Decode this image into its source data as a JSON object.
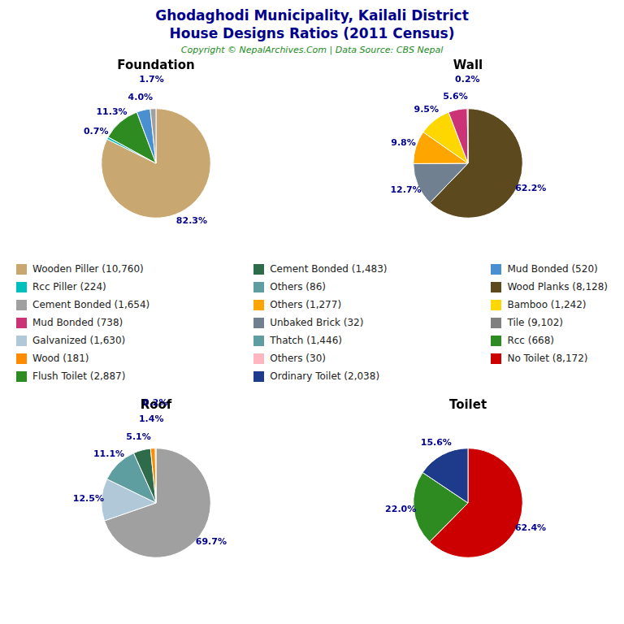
{
  "title": "Ghodaghodi Municipality, Kailali District",
  "subtitle": "House Designs Ratios (2011 Census)",
  "annotations": [
    "Copyright © NepalArchives.Com | Data Source: CBS Nepal"
  ],
  "legend_entries": [
    [
      {
        "name": "Wooden Piller (10,760)",
        "color": "#C8A870"
      },
      {
        "name": "Rcc Piller (224)",
        "color": "#00BFBF"
      },
      {
        "name": "Cement Bonded (1,654)",
        "color": "#A0A0A0"
      },
      {
        "name": "Mud Bonded (738)",
        "color": "#CC3377"
      },
      {
        "name": "Galvanized (1,630)",
        "color": "#B0C8D8"
      },
      {
        "name": "Wood (181)",
        "color": "#FF8C00"
      },
      {
        "name": "Flush Toilet (2,887)",
        "color": "#2E8B22"
      }
    ],
    [
      {
        "name": "Cement Bonded (1,483)",
        "color": "#2E6B4A"
      },
      {
        "name": "Others (86)",
        "color": "#5F9EA0"
      },
      {
        "name": "Others (1,277)",
        "color": "#FFA500"
      },
      {
        "name": "Unbaked Brick (32)",
        "color": "#708090"
      },
      {
        "name": "Thatch (1,446)",
        "color": "#5F9EA0"
      },
      {
        "name": "Others (30)",
        "color": "#FFB6C1"
      },
      {
        "name": "Ordinary Toilet (2,038)",
        "color": "#1E3A8A"
      }
    ],
    [
      {
        "name": "Mud Bonded (520)",
        "color": "#4A90D0"
      },
      {
        "name": "Wood Planks (8,128)",
        "color": "#5C4A1E"
      },
      {
        "name": "Bamboo (1,242)",
        "color": "#FFD700"
      },
      {
        "name": "Tile (9,102)",
        "color": "#808080"
      },
      {
        "name": "Rcc (668)",
        "color": "#2E8B22"
      },
      {
        "name": "No Toilet (8,172)",
        "color": "#CC0000"
      }
    ]
  ],
  "chart_data": [
    {
      "type": "pie",
      "title": "Foundation",
      "values": [
        82.3,
        0.7,
        11.3,
        4.0,
        1.7,
        0.0
      ],
      "value_labels": [
        "82.3%",
        "0.7%",
        "11.3%",
        "4.0%",
        "1.7%",
        null
      ],
      "colors": [
        "#C8A870",
        "#00BFBF",
        "#2E8B22",
        "#4A90D0",
        "#A0A0A0",
        "#808080"
      ],
      "data_labels": true
    },
    {
      "type": "pie",
      "title": "Wall",
      "values": [
        62.2,
        12.7,
        9.8,
        9.5,
        5.6,
        0.2
      ],
      "value_labels": [
        "62.2%",
        "12.7%",
        "9.8%",
        "9.5%",
        "5.6%",
        "0.2%"
      ],
      "colors": [
        "#5C4A1E",
        "#708090",
        "#FFA500",
        "#FFD700",
        "#CC3377",
        "#CC0000"
      ],
      "data_labels": true
    },
    {
      "type": "pie",
      "title": "Roof",
      "values": [
        69.7,
        12.5,
        11.1,
        5.1,
        1.4,
        0.2
      ],
      "value_labels": [
        "69.7%",
        "12.5%",
        "11.1%",
        "5.1%",
        "1.4%",
        "0.2%"
      ],
      "colors": [
        "#A0A0A0",
        "#B0C8D8",
        "#5F9EA0",
        "#2E6B4A",
        "#FF8C00",
        "#808080"
      ],
      "data_labels": true
    },
    {
      "type": "pie",
      "title": "Toilet",
      "values": [
        62.4,
        22.0,
        15.6
      ],
      "value_labels": [
        "62.4%",
        "22.0%",
        "15.6%"
      ],
      "colors": [
        "#CC0000",
        "#2E8B22",
        "#1E3A8A"
      ],
      "data_labels": true
    }
  ]
}
